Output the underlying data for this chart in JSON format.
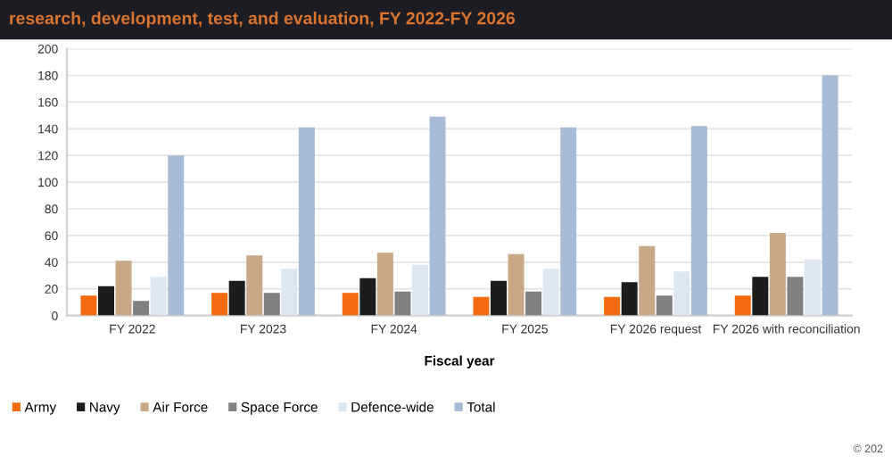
{
  "chart_data": {
    "type": "bar",
    "title": "research, development, test, and evaluation, FY 2022-FY 2026",
    "xlabel": "Fiscal year",
    "categories": [
      "FY 2022",
      "FY 2023",
      "FY 2024",
      "FY 2025",
      "FY 2026 request",
      "FY 2026 with reconciliation"
    ],
    "series": [
      {
        "name": "Army",
        "color": "#f26b0f",
        "values": [
          15,
          17,
          17,
          14,
          14,
          15
        ]
      },
      {
        "name": "Navy",
        "color": "#1c1c1c",
        "values": [
          22,
          26,
          28,
          26,
          25,
          29
        ]
      },
      {
        "name": "Air Force",
        "color": "#c9a886",
        "values": [
          41,
          45,
          47,
          46,
          52,
          62
        ]
      },
      {
        "name": "Space Force",
        "color": "#808080",
        "values": [
          11,
          17,
          18,
          18,
          15,
          29
        ]
      },
      {
        "name": "Defence-wide",
        "color": "#dde7f2",
        "values": [
          29,
          35,
          38,
          35,
          33,
          42
        ]
      },
      {
        "name": "Total",
        "color": "#a7bbd7",
        "values": [
          120,
          141,
          149,
          141,
          142,
          180
        ]
      }
    ],
    "ylim": [
      0,
      200
    ],
    "yticks": [
      0,
      20,
      40,
      60,
      80,
      100,
      120,
      140,
      160,
      180,
      200
    ],
    "grid": "y",
    "legend": "bottom left",
    "annotations": [
      "© 202"
    ]
  }
}
